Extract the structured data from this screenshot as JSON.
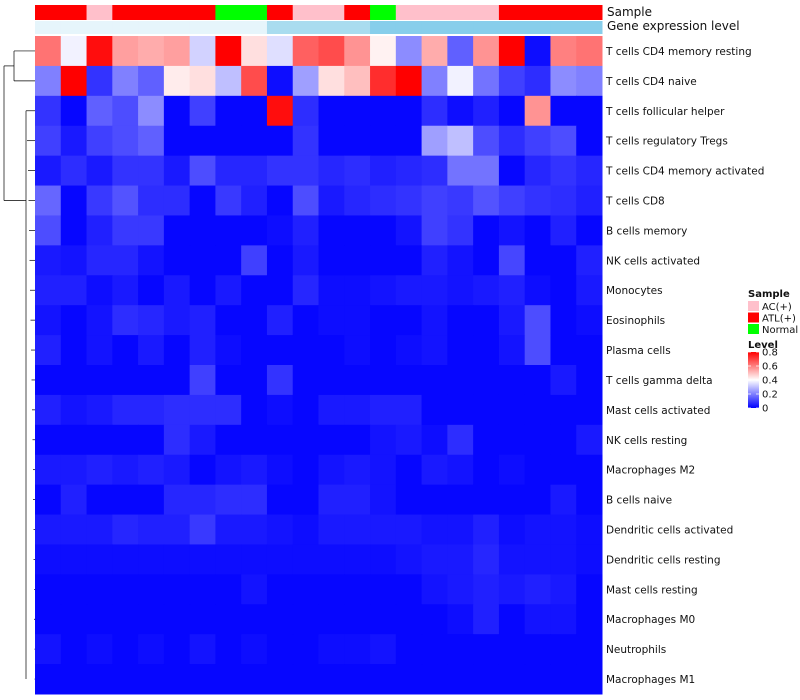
{
  "chart_data": {
    "type": "heatmap",
    "annotation_tracks": [
      {
        "name": "Sample",
        "values": [
          "ATL(+)",
          "ATL(+)",
          "AC(+)",
          "ATL(+)",
          "ATL(+)",
          "ATL(+)",
          "ATL(+)",
          "Normal",
          "Normal",
          "ATL(+)",
          "AC(+)",
          "AC(+)",
          "ATL(+)",
          "Normal",
          "AC(+)",
          "AC(+)",
          "AC(+)",
          "AC(+)",
          "ATL(+)",
          "ATL(+)",
          "ATL(+)",
          "ATL(+)"
        ]
      },
      {
        "name": "Gene expression level",
        "values": [
          "low",
          "low",
          "low",
          "low",
          "low",
          "low",
          "low",
          "low",
          "low",
          "mid",
          "mid",
          "mid",
          "mid",
          "high",
          "high",
          "high",
          "high",
          "high",
          "high",
          "high",
          "high",
          "high"
        ]
      }
    ],
    "gene_expression_colors": {
      "low": "#e6f5fb",
      "mid": "#a9dcef",
      "high": "#87ceeb"
    },
    "rows": [
      "T cells CD4 memory resting",
      "T cells CD4 naive",
      "T cells follicular helper",
      "T cells regulatory  Tregs",
      "T cells CD4 memory activated",
      "T cells CD8",
      "B cells memory",
      "NK cells activated",
      "Monocytes",
      "Eosinophils",
      "Plasma cells",
      "T cells gamma delta",
      "Mast cells activated",
      "NK cells resting",
      "Macrophages M2",
      "B cells naive",
      "Dendritic cells activated",
      "Dendritic cells resting",
      "Mast cells resting",
      "Macrophages M0",
      "Neutrophils",
      "Macrophages M1"
    ],
    "values": [
      [
        0.62,
        0.38,
        0.78,
        0.55,
        0.53,
        0.55,
        0.33,
        0.8,
        0.45,
        0.35,
        0.65,
        0.68,
        0.57,
        0.42,
        0.22,
        0.53,
        0.15,
        0.57,
        0.8,
        0.02,
        0.6,
        0.62
      ],
      [
        0.2,
        0.8,
        0.08,
        0.2,
        0.15,
        0.43,
        0.45,
        0.3,
        0.68,
        0.02,
        0.25,
        0.45,
        0.5,
        0.73,
        0.8,
        0.2,
        0.38,
        0.18,
        0.1,
        0.07,
        0.22,
        0.2
      ],
      [
        0.08,
        0.01,
        0.15,
        0.12,
        0.22,
        0.01,
        0.1,
        0.01,
        0.01,
        0.78,
        0.07,
        0.01,
        0.01,
        0.01,
        0.01,
        0.07,
        0.02,
        0.05,
        0.01,
        0.57,
        0.01,
        0.01
      ],
      [
        0.1,
        0.04,
        0.1,
        0.12,
        0.15,
        0.01,
        0.01,
        0.01,
        0.01,
        0.01,
        0.08,
        0.01,
        0.01,
        0.01,
        0.01,
        0.25,
        0.3,
        0.12,
        0.07,
        0.1,
        0.12,
        0.01
      ],
      [
        0.04,
        0.07,
        0.04,
        0.08,
        0.08,
        0.04,
        0.12,
        0.06,
        0.06,
        0.08,
        0.08,
        0.06,
        0.07,
        0.05,
        0.06,
        0.07,
        0.18,
        0.18,
        0.01,
        0.06,
        0.08,
        0.06
      ],
      [
        0.16,
        0.01,
        0.09,
        0.13,
        0.07,
        0.07,
        0.01,
        0.09,
        0.05,
        0.01,
        0.12,
        0.04,
        0.06,
        0.07,
        0.08,
        0.1,
        0.09,
        0.13,
        0.1,
        0.08,
        0.07,
        0.05
      ],
      [
        0.12,
        0.01,
        0.05,
        0.09,
        0.09,
        0.01,
        0.01,
        0.01,
        0.01,
        0.02,
        0.05,
        0.01,
        0.01,
        0.01,
        0.03,
        0.1,
        0.08,
        0.01,
        0.03,
        0.01,
        0.05,
        0.01
      ],
      [
        0.04,
        0.03,
        0.06,
        0.06,
        0.03,
        0.01,
        0.01,
        0.01,
        0.1,
        0.01,
        0.04,
        0.01,
        0.01,
        0.01,
        0.01,
        0.05,
        0.03,
        0.01,
        0.11,
        0.01,
        0.01,
        0.05
      ],
      [
        0.05,
        0.05,
        0.02,
        0.04,
        0.01,
        0.04,
        0.01,
        0.04,
        0.01,
        0.01,
        0.06,
        0.02,
        0.02,
        0.03,
        0.04,
        0.04,
        0.03,
        0.04,
        0.05,
        0.02,
        0.01,
        0.04
      ],
      [
        0.03,
        0.01,
        0.03,
        0.07,
        0.06,
        0.04,
        0.05,
        0.01,
        0.01,
        0.05,
        0.01,
        0.02,
        0.02,
        0.01,
        0.01,
        0.03,
        0.01,
        0.01,
        0.04,
        0.12,
        0.01,
        0.02
      ],
      [
        0.05,
        0.01,
        0.03,
        0.01,
        0.04,
        0.01,
        0.05,
        0.02,
        0.01,
        0.01,
        0.01,
        0.01,
        0.02,
        0.01,
        0.02,
        0.03,
        0.01,
        0.01,
        0.03,
        0.12,
        0.01,
        0.01
      ],
      [
        0.01,
        0.01,
        0.01,
        0.01,
        0.01,
        0.01,
        0.1,
        0.01,
        0.01,
        0.08,
        0.01,
        0.01,
        0.01,
        0.01,
        0.01,
        0.01,
        0.01,
        0.01,
        0.01,
        0.01,
        0.04,
        0.01
      ],
      [
        0.05,
        0.03,
        0.04,
        0.06,
        0.06,
        0.07,
        0.07,
        0.07,
        0.01,
        0.02,
        0.01,
        0.04,
        0.04,
        0.05,
        0.05,
        0.01,
        0.01,
        0.01,
        0.01,
        0.01,
        0.01,
        0.01
      ],
      [
        0.01,
        0.01,
        0.01,
        0.01,
        0.01,
        0.07,
        0.04,
        0.01,
        0.01,
        0.01,
        0.01,
        0.01,
        0.01,
        0.03,
        0.04,
        0.02,
        0.07,
        0.01,
        0.01,
        0.01,
        0.01,
        0.04
      ],
      [
        0.04,
        0.04,
        0.05,
        0.04,
        0.05,
        0.04,
        0.01,
        0.03,
        0.04,
        0.02,
        0.01,
        0.03,
        0.04,
        0.03,
        0.01,
        0.04,
        0.03,
        0.01,
        0.02,
        0.01,
        0.01,
        0.01
      ],
      [
        0.01,
        0.05,
        0.01,
        0.01,
        0.01,
        0.06,
        0.06,
        0.07,
        0.07,
        0.01,
        0.01,
        0.05,
        0.05,
        0.03,
        0.01,
        0.01,
        0.01,
        0.01,
        0.01,
        0.01,
        0.04,
        0.01
      ],
      [
        0.04,
        0.04,
        0.04,
        0.06,
        0.05,
        0.05,
        0.09,
        0.04,
        0.04,
        0.03,
        0.02,
        0.04,
        0.04,
        0.04,
        0.04,
        0.03,
        0.03,
        0.05,
        0.02,
        0.03,
        0.03,
        0.02
      ],
      [
        0.02,
        0.02,
        0.02,
        0.02,
        0.02,
        0.02,
        0.02,
        0.02,
        0.02,
        0.02,
        0.02,
        0.02,
        0.02,
        0.02,
        0.03,
        0.04,
        0.04,
        0.06,
        0.03,
        0.03,
        0.03,
        0.02
      ],
      [
        0.01,
        0.01,
        0.01,
        0.01,
        0.01,
        0.01,
        0.01,
        0.01,
        0.03,
        0.01,
        0.01,
        0.01,
        0.01,
        0.01,
        0.01,
        0.03,
        0.04,
        0.05,
        0.04,
        0.05,
        0.04,
        0.01
      ],
      [
        0.01,
        0.01,
        0.01,
        0.01,
        0.01,
        0.01,
        0.01,
        0.01,
        0.01,
        0.01,
        0.01,
        0.01,
        0.01,
        0.01,
        0.01,
        0.01,
        0.02,
        0.05,
        0.01,
        0.03,
        0.03,
        0.01
      ],
      [
        0.03,
        0.01,
        0.02,
        0.01,
        0.02,
        0.01,
        0.03,
        0.01,
        0.02,
        0.01,
        0.01,
        0.02,
        0.02,
        0.03,
        0.01,
        0.01,
        0.01,
        0.01,
        0.01,
        0.01,
        0.01,
        0.01
      ],
      [
        0.01,
        0.01,
        0.01,
        0.01,
        0.01,
        0.01,
        0.01,
        0.01,
        0.01,
        0.01,
        0.01,
        0.01,
        0.01,
        0.01,
        0.01,
        0.01,
        0.01,
        0.01,
        0.01,
        0.01,
        0.01,
        0.01
      ]
    ],
    "sample_legend": {
      "title": "Sample",
      "items": [
        {
          "label": "AC(+)",
          "color": "#ffc0cb"
        },
        {
          "label": "ATL(+)",
          "color": "#ff0000"
        },
        {
          "label": "Normal",
          "color": "#00ff00"
        }
      ]
    },
    "level_legend": {
      "title": "Level",
      "range": [
        0,
        0.8
      ],
      "ticks": [
        "0.8",
        "0.6",
        "0.4",
        "0.2",
        "0"
      ],
      "colors": [
        "#0000ff",
        "#ffffff",
        "#ff0000"
      ]
    },
    "row_dendrogram": true,
    "legend_position": "right"
  }
}
